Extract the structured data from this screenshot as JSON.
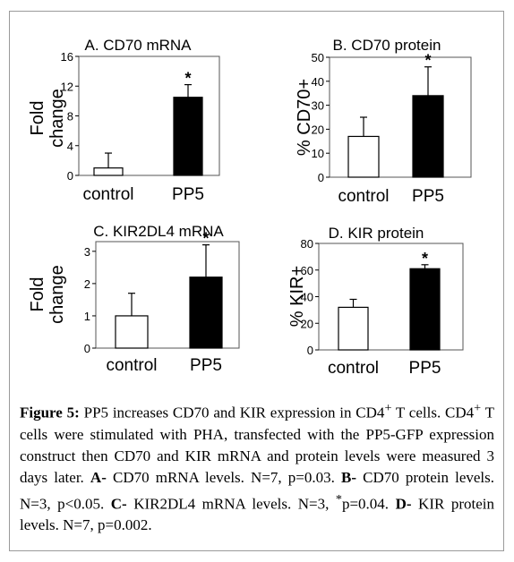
{
  "chart_data": [
    {
      "type": "bar",
      "title": "A. CD70 mRNA",
      "xlabel": "",
      "ylabel": "Fold change",
      "categories": [
        "control",
        "PP5"
      ],
      "values": [
        1,
        10.5
      ],
      "errors": [
        2,
        1.7
      ],
      "significance": [
        "",
        "*"
      ],
      "ylim": [
        0,
        16
      ],
      "yticks": [
        0,
        4,
        8,
        12,
        16
      ],
      "bar_colors": [
        "#ffffff",
        "#000000"
      ],
      "grid": false
    },
    {
      "type": "bar",
      "title": "B. CD70 protein",
      "xlabel": "",
      "ylabel": "% CD70+",
      "categories": [
        "control",
        "PP5"
      ],
      "values": [
        17,
        34
      ],
      "errors": [
        8,
        12
      ],
      "significance": [
        "",
        "*"
      ],
      "ylim": [
        0,
        50
      ],
      "yticks": [
        0,
        10,
        20,
        30,
        40,
        50
      ],
      "bar_colors": [
        "#ffffff",
        "#000000"
      ],
      "grid": false
    },
    {
      "type": "bar",
      "title": "C. KIR2DL4 mRNA",
      "xlabel": "",
      "ylabel": "Fold change",
      "categories": [
        "control",
        "PP5"
      ],
      "values": [
        1,
        2.2
      ],
      "errors": [
        0.7,
        1
      ],
      "significance": [
        "",
        "*"
      ],
      "ylim": [
        0,
        3.3
      ],
      "yticks": [
        0,
        1,
        2,
        3
      ],
      "bar_colors": [
        "#ffffff",
        "#000000"
      ],
      "grid": false
    },
    {
      "type": "bar",
      "title": "D. KIR protein",
      "xlabel": "",
      "ylabel": "% KIR+",
      "categories": [
        "control",
        "PP5"
      ],
      "values": [
        32,
        61
      ],
      "errors": [
        6,
        3
      ],
      "significance": [
        "",
        "*"
      ],
      "ylim": [
        0,
        80
      ],
      "yticks": [
        0,
        20,
        40,
        60,
        80
      ],
      "bar_colors": [
        "#ffffff",
        "#000000"
      ],
      "grid": false
    }
  ],
  "caption": {
    "label": "Figure 5:",
    "line1": " PP5 increases CD70 and KIR expression in CD4",
    "sup1": "+",
    "line1b": " T cells. CD4",
    "sup2": "+",
    "line2": " T cells were stimulated with PHA, transfected with the PP5-GFP expression construct then CD70 and KIR mRNA and protein levels were measured 3 days later. ",
    "a_label": "A-",
    "a_text": " CD70 mRNA levels. N=7, p=0.03. ",
    "b_label": "B-",
    "b_text": " CD70 protein levels. N=3, p<0.05. ",
    "c_label": "C-",
    "c_text": " KIR2DL4 mRNA levels. N=3, ",
    "c_sup": "*",
    "c_text2": "p=0.04. ",
    "d_label": "D-",
    "d_text": " KIR protein levels. N=7, p=0.002."
  }
}
